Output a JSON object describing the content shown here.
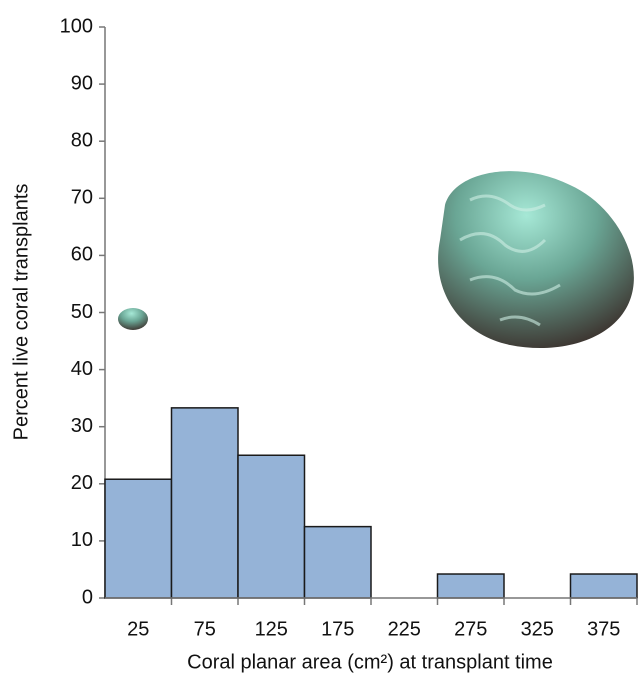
{
  "chart_data": {
    "type": "bar",
    "x_label": "Coral planar area (cm²) at transplant time",
    "y_label": "Percent live coral transplants",
    "categories": [
      "25",
      "75",
      "125",
      "175",
      "225",
      "275",
      "325",
      "375"
    ],
    "values": [
      20.8,
      33.3,
      25,
      12.5,
      0,
      4.2,
      0,
      4.2
    ],
    "color": "#95b3d7",
    "ylim": [
      0,
      100
    ],
    "yticks": [
      0,
      10,
      20,
      30,
      40,
      50,
      60,
      70,
      80,
      90,
      100
    ],
    "grid": false
  }
}
